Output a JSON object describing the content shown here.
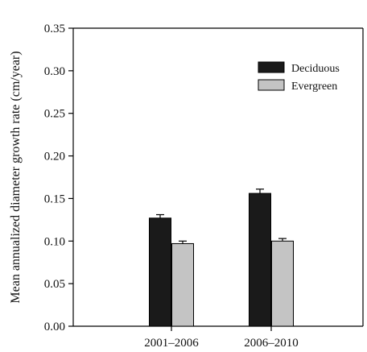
{
  "chart_data": {
    "type": "bar",
    "title": "",
    "xlabel": "",
    "ylabel": "Mean annualized diameter growth rate  (cm/year)",
    "ylim": [
      0,
      0.35
    ],
    "yticks": [
      "0.00",
      "0.05",
      "0.10",
      "0.15",
      "0.20",
      "0.25",
      "0.30",
      "0.35"
    ],
    "categories": [
      "2001–2006",
      "2006–2010"
    ],
    "series": [
      {
        "name": "Deciduous",
        "values": [
          0.127,
          0.156
        ],
        "errors": [
          0.004,
          0.005
        ],
        "color": "#1a1a1a"
      },
      {
        "name": "Evergreen",
        "values": [
          0.097,
          0.1
        ],
        "errors": [
          0.003,
          0.003
        ],
        "color": "#c4c4c4"
      }
    ],
    "legend_position": "top-right",
    "grid": false
  }
}
